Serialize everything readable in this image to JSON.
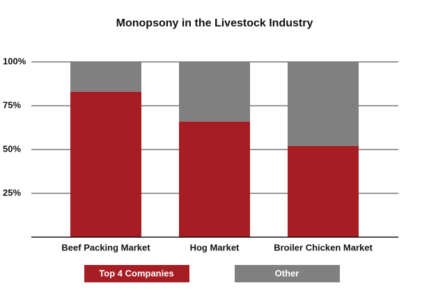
{
  "chart_data": {
    "type": "stacked_bar",
    "title": "Monopsony in the Livestock Industry",
    "categories": [
      "Beef Packing Market",
      "Hog Market",
      "Broiler Chicken Market"
    ],
    "series": [
      {
        "name": "Top 4 Companies",
        "color": "#a61e24",
        "values": [
          83,
          66,
          52
        ]
      },
      {
        "name": "Other",
        "color": "#808080",
        "values": [
          17,
          34,
          48
        ]
      }
    ],
    "ylim": [
      0,
      100
    ],
    "yticks": [
      {
        "value": 25,
        "label": "25%"
      },
      {
        "value": 50,
        "label": "50%"
      },
      {
        "value": 75,
        "label": "75%"
      },
      {
        "value": 100,
        "label": "100%"
      }
    ],
    "grid": true
  }
}
